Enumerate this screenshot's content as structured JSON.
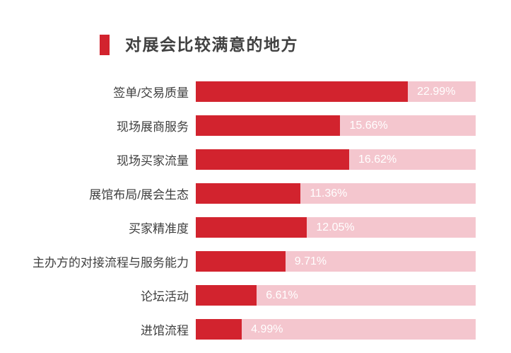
{
  "title": {
    "text": "对展会比较满意的地方",
    "marker_color": "#d2232e"
  },
  "colors": {
    "bar_fill": "#d2232e",
    "bar_track": "#f4c6ce",
    "value_text": "#ffffff",
    "label_text": "#3f3f3f",
    "title_text": "#414141",
    "background": "#ffffff"
  },
  "chart_data": {
    "type": "bar",
    "orientation": "horizontal",
    "title": "对展会比较满意的地方",
    "categories": [
      "签单/交易质量",
      "现场展商服务",
      "现场买家流量",
      "展馆布局/展会生态",
      "买家精准度",
      "主办方的对接流程与服务能力",
      "论坛活动",
      "进馆流程"
    ],
    "values": [
      22.99,
      15.66,
      16.62,
      11.36,
      12.05,
      9.71,
      6.61,
      4.99
    ],
    "value_labels": [
      "22.99%",
      "15.66%",
      "16.62%",
      "11.36%",
      "12.05%",
      "9.71%",
      "6.61%",
      "4.99%"
    ],
    "xlabel": "",
    "ylabel": "",
    "xlim": [
      0,
      30.33
    ],
    "grid": false,
    "legend": false,
    "value_label_position": "after-fill-inside-track"
  }
}
